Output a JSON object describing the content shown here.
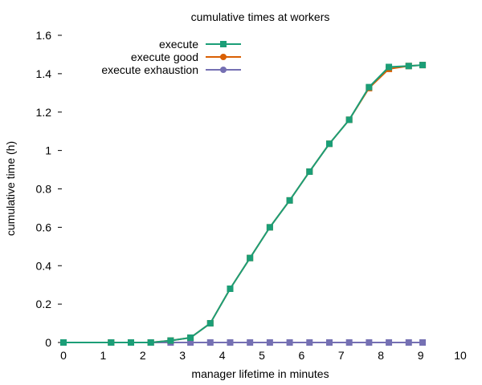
{
  "chart_data": {
    "type": "line",
    "title": "cumulative times at workers",
    "xlabel": "manager lifetime in minutes",
    "ylabel": "cumulative time (h)",
    "xlim": [
      0,
      10
    ],
    "ylim": [
      0,
      1.6
    ],
    "xticks": [
      "0",
      "1",
      "2",
      "3",
      "4",
      "5",
      "6",
      "7",
      "8",
      "9",
      "10"
    ],
    "yticks": [
      "0",
      "0.2",
      "0.4",
      "0.6",
      "0.8",
      "1",
      "1.2",
      "1.4",
      "1.6"
    ],
    "grid": false,
    "legend_position": "top-left",
    "x": [
      0,
      1.2,
      1.7,
      2.2,
      2.7,
      3.2,
      3.7,
      4.2,
      4.7,
      5.2,
      5.7,
      6.2,
      6.7,
      7.2,
      7.7,
      8.2,
      8.7,
      9.05
    ],
    "series": [
      {
        "name": "execute",
        "color": "#1b9e77",
        "marker": "square",
        "values": [
          0,
          0,
          0,
          0,
          0.01,
          0.025,
          0.1,
          0.28,
          0.44,
          0.6,
          0.74,
          0.89,
          1.035,
          1.16,
          1.33,
          1.435,
          1.44,
          1.445
        ]
      },
      {
        "name": "execute good",
        "color": "#d95f02",
        "marker": "circle",
        "values": [
          0,
          0,
          0,
          0,
          0.01,
          0.025,
          0.1,
          0.28,
          0.44,
          0.6,
          0.74,
          0.89,
          1.035,
          1.16,
          1.325,
          1.425,
          1.44,
          1.445
        ]
      },
      {
        "name": "execute exhaustion",
        "color": "#7570b3",
        "marker": "circle",
        "values": [
          0,
          0,
          0,
          0,
          0,
          0,
          0,
          0,
          0,
          0,
          0,
          0,
          0,
          0,
          0,
          0,
          0,
          0
        ]
      }
    ]
  }
}
